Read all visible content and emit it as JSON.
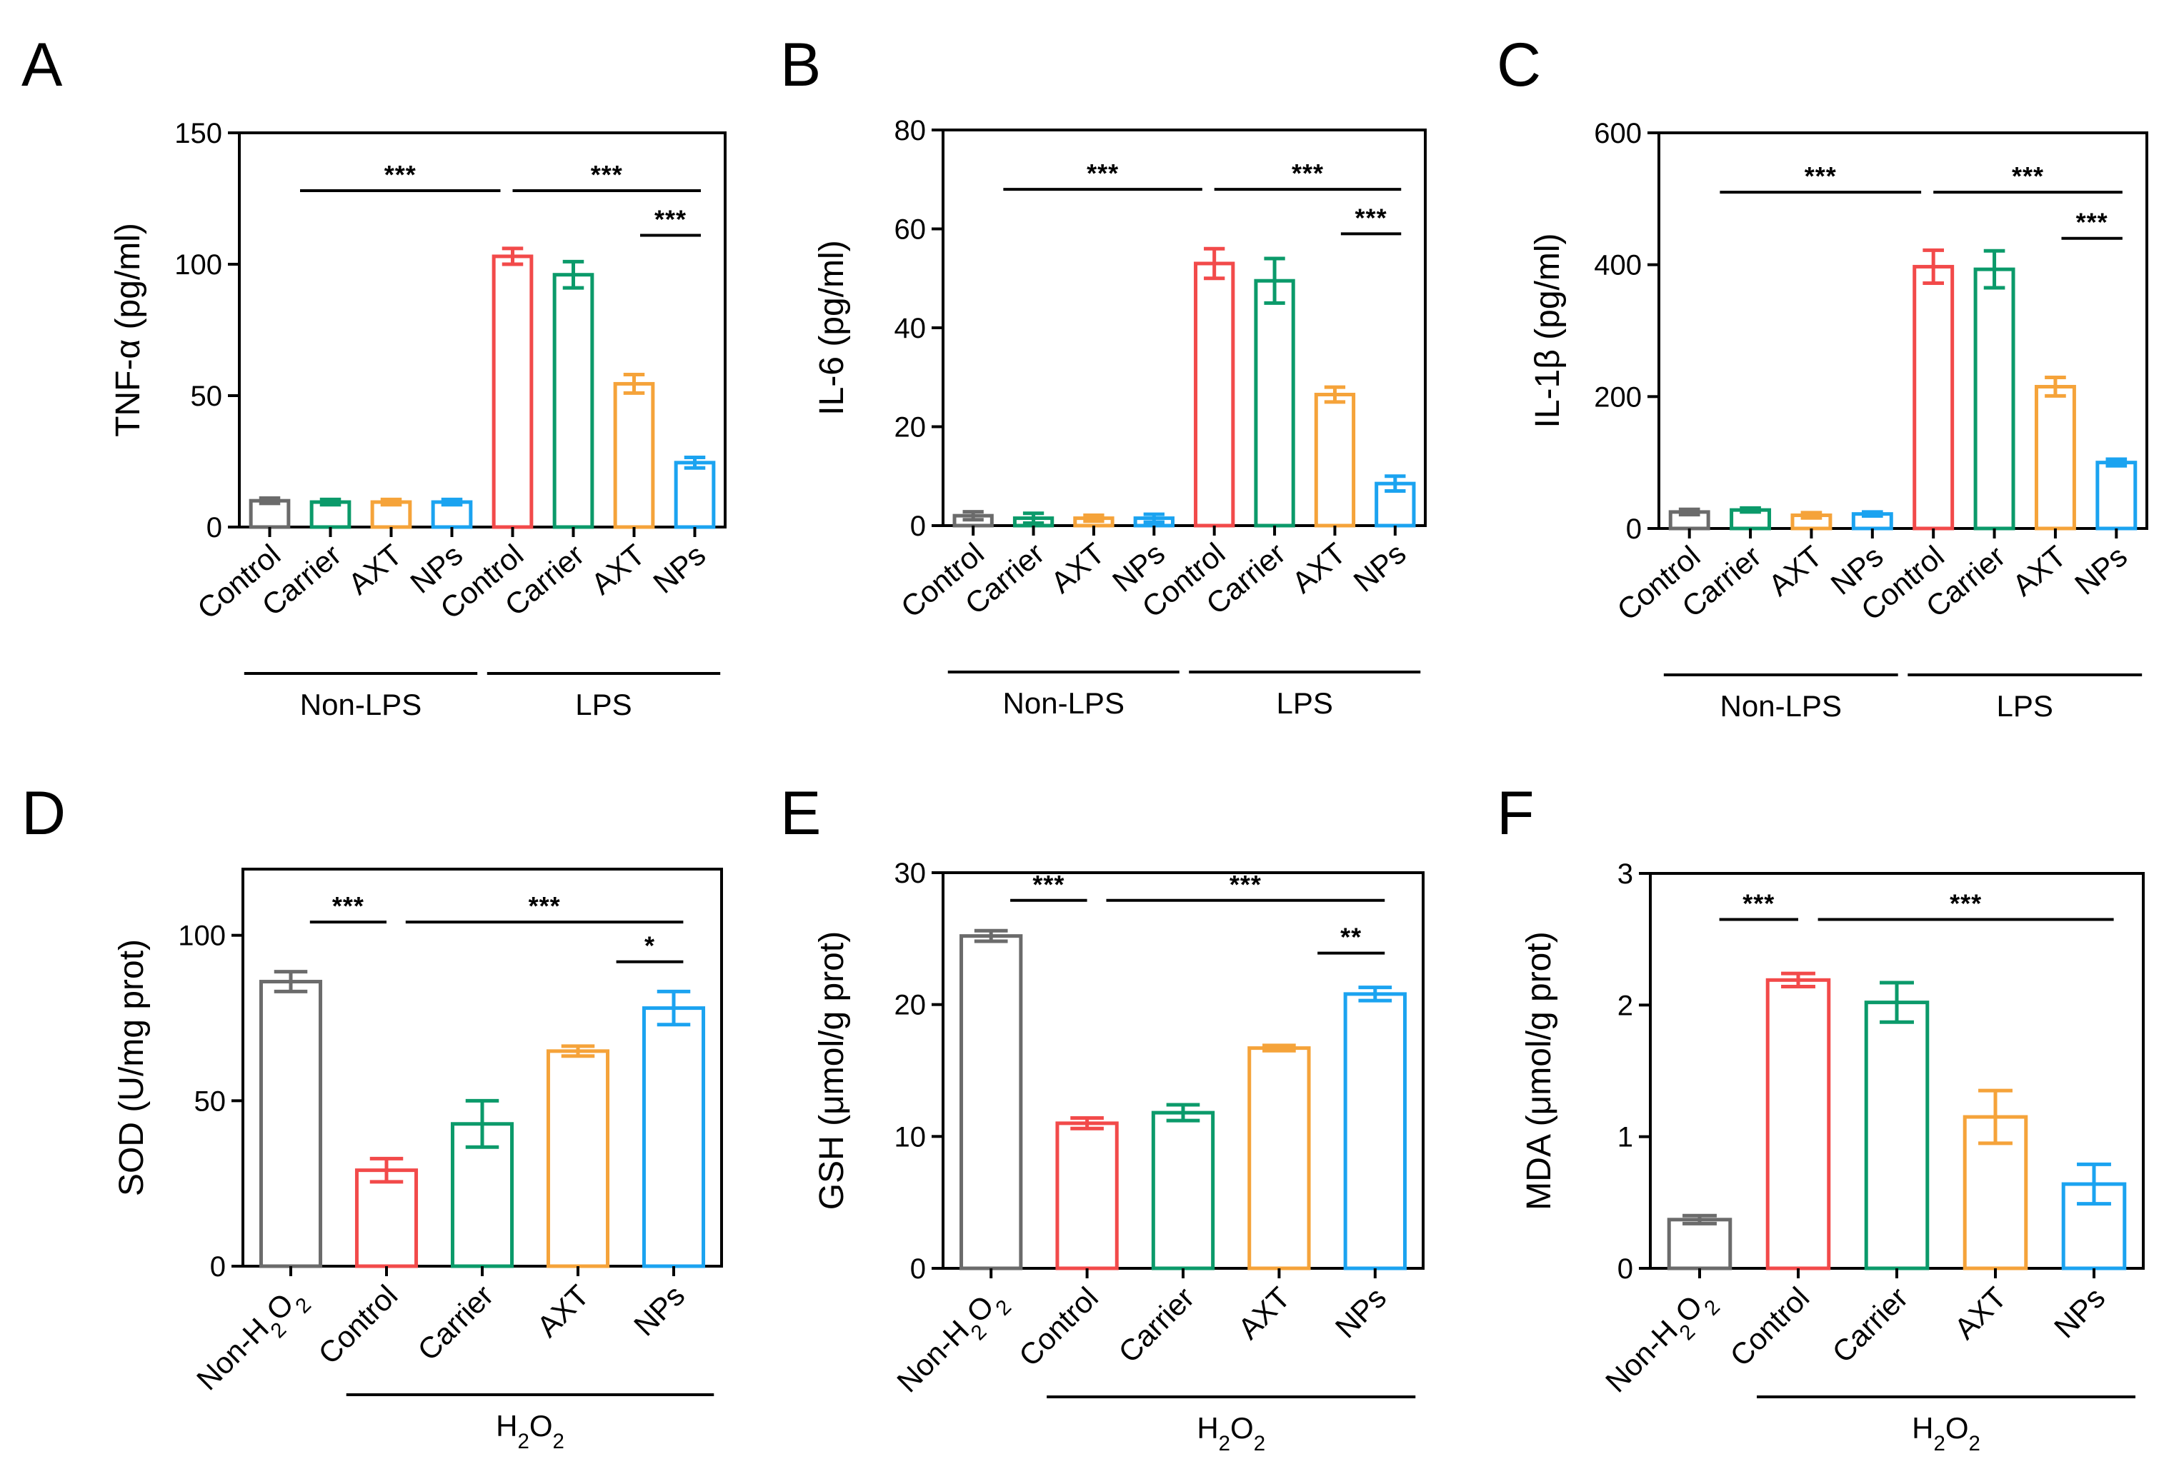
{
  "palette": {
    "gray": "#6b6b6b",
    "red": "#f24a4a",
    "green": "#0b9a6a",
    "orange": "#f5a33a",
    "blue": "#1ba3f0",
    "axis": "#000000"
  },
  "chart_data": [
    {
      "panel": "A",
      "type": "bar",
      "ylabel": "TNF-α (pg/ml)",
      "ylim": [
        0,
        150
      ],
      "yticks": [
        0,
        50,
        100,
        150
      ],
      "categories": [
        "Control",
        "Carrier",
        "AXT",
        "NPs",
        "Control",
        "Carrier",
        "AXT",
        "NPs"
      ],
      "colors": [
        "gray",
        "green",
        "orange",
        "blue",
        "red",
        "green",
        "orange",
        "blue"
      ],
      "values": [
        10,
        9.5,
        9.5,
        9.5,
        103,
        96,
        54.5,
        24.5
      ],
      "errors": [
        1,
        1,
        1,
        1,
        3,
        5,
        3.5,
        2
      ],
      "groups": [
        {
          "label": "Non-LPS",
          "start": 0,
          "end": 3
        },
        {
          "label": "LPS",
          "start": 4,
          "end": 7
        }
      ],
      "significance": [
        {
          "label": "***",
          "from": 0.5,
          "to": 3.8,
          "y": 128
        },
        {
          "label": "***",
          "from": 4.0,
          "to": 7.1,
          "y": 128
        },
        {
          "label": "***",
          "from": 6.1,
          "to": 7.1,
          "y": 111
        }
      ]
    },
    {
      "panel": "B",
      "type": "bar",
      "ylabel": "IL-6 (pg/ml)",
      "ylim": [
        0,
        80
      ],
      "yticks": [
        0,
        20,
        40,
        60,
        80
      ],
      "categories": [
        "Control",
        "Carrier",
        "AXT",
        "NPs",
        "Control",
        "Carrier",
        "AXT",
        "NPs"
      ],
      "colors": [
        "gray",
        "green",
        "orange",
        "blue",
        "red",
        "green",
        "orange",
        "blue"
      ],
      "values": [
        2,
        1.5,
        1.5,
        1.5,
        53,
        49.5,
        26.5,
        8.5
      ],
      "errors": [
        0.8,
        1,
        0.6,
        0.8,
        3,
        4.5,
        1.5,
        1.5
      ],
      "groups": [
        {
          "label": "Non-LPS",
          "start": 0,
          "end": 3
        },
        {
          "label": "LPS",
          "start": 4,
          "end": 7
        }
      ],
      "significance": [
        {
          "label": "***",
          "from": 0.5,
          "to": 3.8,
          "y": 68
        },
        {
          "label": "***",
          "from": 4.0,
          "to": 7.1,
          "y": 68
        },
        {
          "label": "***",
          "from": 6.1,
          "to": 7.1,
          "y": 59
        }
      ]
    },
    {
      "panel": "C",
      "type": "bar",
      "ylabel": "IL-1β (pg/ml)",
      "ylim": [
        0,
        600
      ],
      "yticks": [
        0,
        200,
        400,
        600
      ],
      "categories": [
        "Control",
        "Carrier",
        "AXT",
        "NPs",
        "Control",
        "Carrier",
        "AXT",
        "NPs"
      ],
      "colors": [
        "gray",
        "green",
        "orange",
        "blue",
        "red",
        "green",
        "orange",
        "blue"
      ],
      "values": [
        25,
        28,
        20,
        22,
        397,
        393,
        215,
        100
      ],
      "errors": [
        4,
        3,
        4,
        3,
        25,
        28,
        14,
        5
      ],
      "groups": [
        {
          "label": "Non-LPS",
          "start": 0,
          "end": 3
        },
        {
          "label": "LPS",
          "start": 4,
          "end": 7
        }
      ],
      "significance": [
        {
          "label": "***",
          "from": 0.5,
          "to": 3.8,
          "y": 510
        },
        {
          "label": "***",
          "from": 4.0,
          "to": 7.1,
          "y": 510
        },
        {
          "label": "***",
          "from": 6.1,
          "to": 7.1,
          "y": 440
        }
      ]
    },
    {
      "panel": "D",
      "type": "bar",
      "ylabel": "SOD (U/mg prot)",
      "ylim": [
        0,
        120
      ],
      "yticks": [
        0,
        50,
        100
      ],
      "categories": [
        "Non-H₂O₂",
        "Control",
        "Carrier",
        "AXT",
        "NPs"
      ],
      "colors": [
        "gray",
        "red",
        "green",
        "orange",
        "blue"
      ],
      "values": [
        86,
        29,
        43,
        65,
        78
      ],
      "errors": [
        3,
        3.5,
        7,
        1.5,
        5
      ],
      "groups": [
        {
          "label": "H₂O₂",
          "start": 1,
          "end": 4
        }
      ],
      "significance": [
        {
          "label": "***",
          "from": 0.2,
          "to": 1.0,
          "y": 104
        },
        {
          "label": "***",
          "from": 1.2,
          "to": 4.1,
          "y": 104
        },
        {
          "label": "*",
          "from": 3.4,
          "to": 4.1,
          "y": 92
        }
      ]
    },
    {
      "panel": "E",
      "type": "bar",
      "ylabel": "GSH (μmol/g prot)",
      "ylim": [
        0,
        30
      ],
      "yticks": [
        0,
        10,
        20,
        30
      ],
      "categories": [
        "Non-H₂O₂",
        "Control",
        "Carrier",
        "AXT",
        "NPs"
      ],
      "colors": [
        "gray",
        "red",
        "green",
        "orange",
        "blue"
      ],
      "values": [
        25.2,
        11,
        11.8,
        16.7,
        20.8
      ],
      "errors": [
        0.4,
        0.4,
        0.6,
        0.2,
        0.5
      ],
      "groups": [
        {
          "label": "H₂O₂",
          "start": 1,
          "end": 4
        }
      ],
      "significance": [
        {
          "label": "***",
          "from": 0.2,
          "to": 1.0,
          "y": 27.9
        },
        {
          "label": "***",
          "from": 1.2,
          "to": 4.1,
          "y": 27.9
        },
        {
          "label": "**",
          "from": 3.4,
          "to": 4.1,
          "y": 23.9
        }
      ]
    },
    {
      "panel": "F",
      "type": "bar",
      "ylabel": "MDA (μmol/g prot)",
      "ylim": [
        0,
        3
      ],
      "yticks": [
        0,
        1,
        2,
        3
      ],
      "categories": [
        "Non-H₂O₂",
        "Control",
        "Carrier",
        "AXT",
        "NPs"
      ],
      "colors": [
        "gray",
        "red",
        "green",
        "orange",
        "blue"
      ],
      "values": [
        0.37,
        2.19,
        2.02,
        1.15,
        0.64
      ],
      "errors": [
        0.03,
        0.05,
        0.15,
        0.2,
        0.15
      ],
      "groups": [
        {
          "label": "H₂O₂",
          "start": 1,
          "end": 4
        }
      ],
      "significance": [
        {
          "label": "***",
          "from": 0.2,
          "to": 1.0,
          "y": 2.65
        },
        {
          "label": "***",
          "from": 1.2,
          "to": 4.2,
          "y": 2.65
        }
      ]
    }
  ]
}
